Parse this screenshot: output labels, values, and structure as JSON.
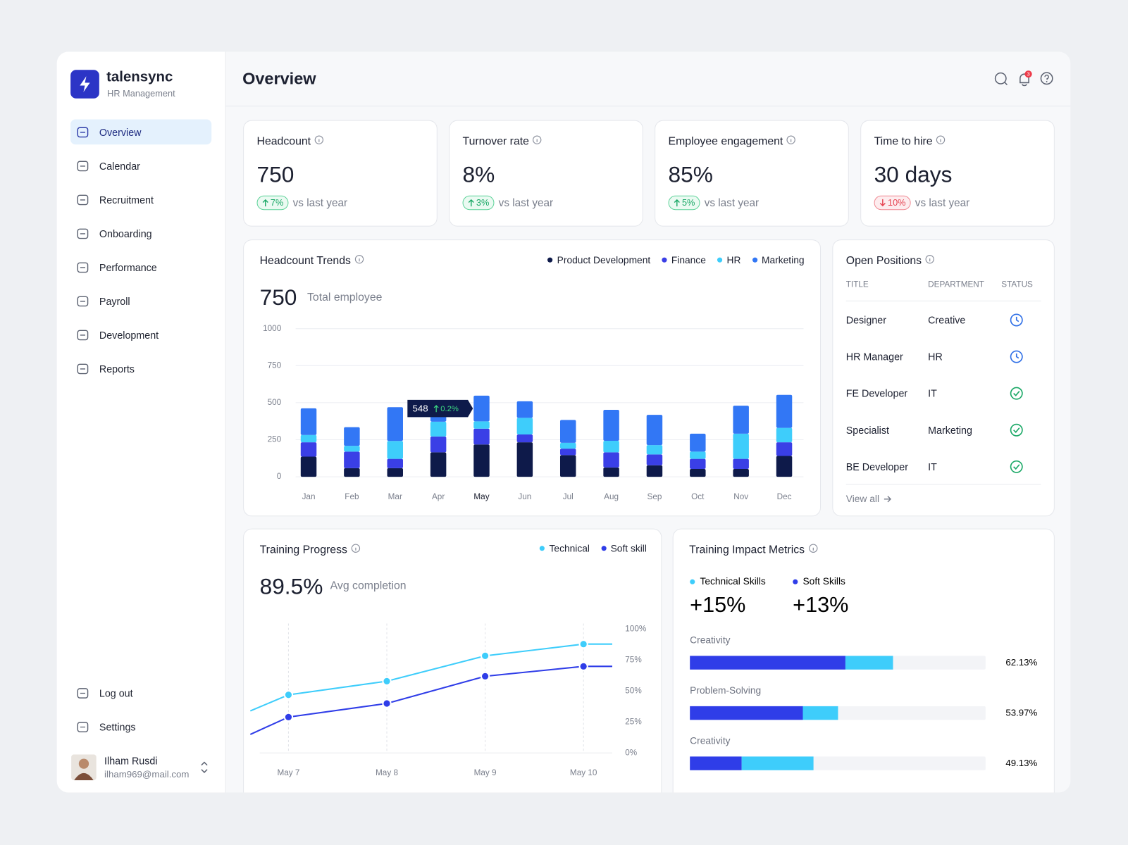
{
  "sidebar": {
    "brand": "talensync",
    "tagline": "HR Management",
    "nav": [
      "Overview",
      "Calendar",
      "Recruitment",
      "Onboarding",
      "Performance",
      "Payroll",
      "Development",
      "Reports"
    ],
    "bottom": [
      "Log out",
      "Settings"
    ],
    "user": {
      "name": "Ilham Rusdi",
      "email": "ilham969@mail.com"
    }
  },
  "header": {
    "title": "Overview",
    "notifications": 3
  },
  "kpis": [
    {
      "title": "Headcount",
      "value": "750",
      "change": "7%",
      "direction": "up",
      "note": "vs last year"
    },
    {
      "title": "Turnover rate",
      "value": "8%",
      "change": "3%",
      "direction": "up",
      "note": "vs last year"
    },
    {
      "title": "Employee engagement",
      "value": "85%",
      "change": "5%",
      "direction": "up",
      "note": "vs last year"
    },
    {
      "title": "Time to hire",
      "value": "30 days",
      "change": "10%",
      "direction": "down",
      "note": "vs last year"
    }
  ],
  "open_positions": {
    "title": "Open Positions",
    "columns": [
      "TITLE",
      "DEPARTMENT",
      "STATUS"
    ],
    "rows": [
      {
        "title": "Designer",
        "department": "Creative",
        "status": "pending"
      },
      {
        "title": "HR Manager",
        "department": "HR",
        "status": "pending"
      },
      {
        "title": "FE Developer",
        "department": "IT",
        "status": "done"
      },
      {
        "title": "Specialist",
        "department": "Marketing",
        "status": "done"
      },
      {
        "title": "BE Developer",
        "department": "IT",
        "status": "done"
      }
    ],
    "link": "View all"
  },
  "chart_data": [
    {
      "type": "stacked-bar",
      "title": "Headcount Trends",
      "summary_value": "750",
      "summary_label": "Total employee",
      "categories": [
        "Jan",
        "Feb",
        "Mar",
        "Apr",
        "May",
        "Jun",
        "Jul",
        "Aug",
        "Sep",
        "Oct",
        "Nov",
        "Dec"
      ],
      "series": [
        {
          "name": "Product Development",
          "color": "#0e1a4a",
          "values": [
            136,
            58,
            58,
            165,
            218,
            233,
            146,
            63,
            78,
            53,
            53,
            141
          ]
        },
        {
          "name": "Finance",
          "color": "#3a3fe6",
          "values": [
            97,
            112,
            63,
            107,
            107,
            53,
            44,
            102,
            73,
            68,
            68,
            92
          ]
        },
        {
          "name": "HR",
          "color": "#3ecdfb",
          "values": [
            49,
            39,
            121,
            100,
            49,
            112,
            39,
            78,
            63,
            49,
            170,
            97
          ]
        },
        {
          "name": "Marketing",
          "color": "#3277f5",
          "values": [
            180,
            126,
            228,
            40,
            174,
            112,
            155,
            209,
            204,
            121,
            189,
            223
          ]
        }
      ],
      "ylim": [
        0,
        1000
      ],
      "yticks": [
        0,
        250,
        500,
        750,
        1000
      ],
      "grid": true,
      "tooltip": {
        "category": "May",
        "value": 548,
        "change": "0.2%"
      }
    },
    {
      "type": "line",
      "title": "Training Progress",
      "summary_value": "89.5%",
      "summary_label": "Avg completion",
      "categories": [
        null,
        "May 7",
        "May 8",
        "May 9",
        "May 10",
        null
      ],
      "series": [
        {
          "name": "Technical",
          "color": "#3ecdfb",
          "values": [
            34,
            47,
            58,
            78.5,
            88,
            88
          ]
        },
        {
          "name": "Soft skill",
          "color": "#2f3de8",
          "values": [
            15,
            29,
            40,
            62,
            70,
            70
          ]
        }
      ],
      "ylim": [
        0,
        100
      ],
      "y_axis": "right",
      "yticks": [
        {
          "value": 0,
          "label": "0%"
        },
        {
          "value": 25,
          "label": "25%"
        },
        {
          "value": 50,
          "label": "50%"
        },
        {
          "value": 75,
          "label": "75%"
        },
        {
          "value": 100,
          "label": "100%"
        }
      ]
    },
    {
      "type": "hbar-stacked",
      "title": "Training Impact Metrics",
      "categories": [
        "Creativity",
        "Problem-Solving",
        "Creativity"
      ],
      "series": [
        {
          "name": "Technical Skills",
          "color": "#3ecdfb",
          "change": "+15%",
          "values": [
            16.1,
            11.9,
            24.3
          ]
        },
        {
          "name": "Soft Skills",
          "color": "#2f3de8",
          "change": "+13%",
          "values": [
            52.6,
            38.2,
            17.5
          ]
        }
      ],
      "xlim": [
        0,
        100
      ],
      "rate_labels": [
        "62.13%",
        "53.97%",
        "49.13%"
      ]
    }
  ]
}
